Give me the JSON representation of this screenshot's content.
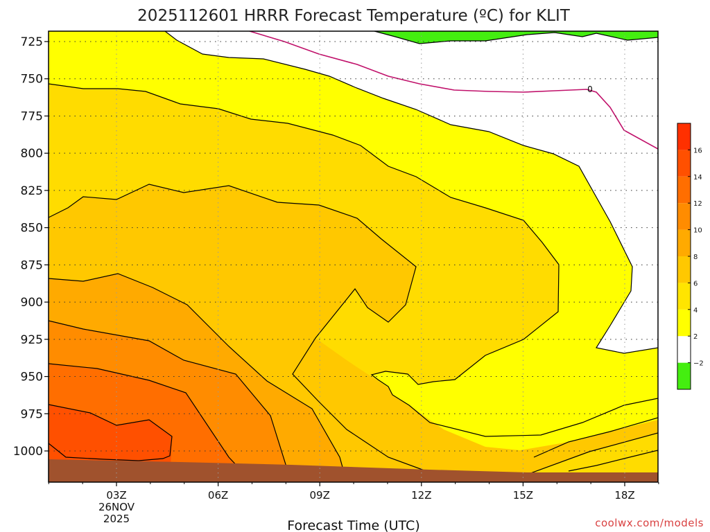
{
  "title": "2025112601 HRRR Forecast Temperature (ºC) for KLIT",
  "xlabel": "Forecast Time (UTC)",
  "credit": "coolwx.com/models",
  "credit_color": "#d94040",
  "date_label": [
    "26NOV",
    "2025"
  ],
  "chart_data": {
    "type": "contour",
    "title": "2025112601 HRRR Forecast Temperature (ºC) for KLIT",
    "xlabel": "Forecast Time (UTC)",
    "ylabel": "",
    "x_ticks": [
      "03Z",
      "06Z",
      "09Z",
      "12Z",
      "15Z",
      "18Z"
    ],
    "xlim_hours": [
      1,
      19
    ],
    "y_ticks": [
      725,
      750,
      775,
      800,
      825,
      850,
      875,
      900,
      925,
      950,
      975,
      1000
    ],
    "y_unit": "hPa",
    "ylim": [
      714,
      1030
    ],
    "contour_levels": [
      -2,
      0,
      2,
      4,
      6,
      8,
      10,
      12,
      14,
      16
    ],
    "zero_label": "0",
    "colorbar": {
      "levels": [
        -2,
        2,
        4,
        6,
        8,
        10,
        12,
        14,
        16
      ],
      "tick_labels": [
        "−2",
        "2",
        "4",
        "6",
        "8",
        "10",
        "12",
        "14",
        "16"
      ],
      "colors": [
        "#44ee10",
        "#ffffff",
        "#ffff00",
        "#ffe500",
        "#ffc800",
        "#ffaa00",
        "#ff8c00",
        "#ff6e00",
        "#ff5000",
        "#ff3000"
      ]
    },
    "colors": {
      "band_below_m2": "#44ee10",
      "band_0_2": "#ffffff",
      "band_2_4": "#ffff00",
      "band_4_6": "#ffdc00",
      "band_6_8": "#ffc800",
      "band_8_10": "#ffaa00",
      "band_10_12": "#ff8c00",
      "band_12_14": "#ff6e00",
      "band_14_16": "#ff5000",
      "zero_line": "#c0106a",
      "ground": "#a0522d"
    },
    "grid": true
  }
}
